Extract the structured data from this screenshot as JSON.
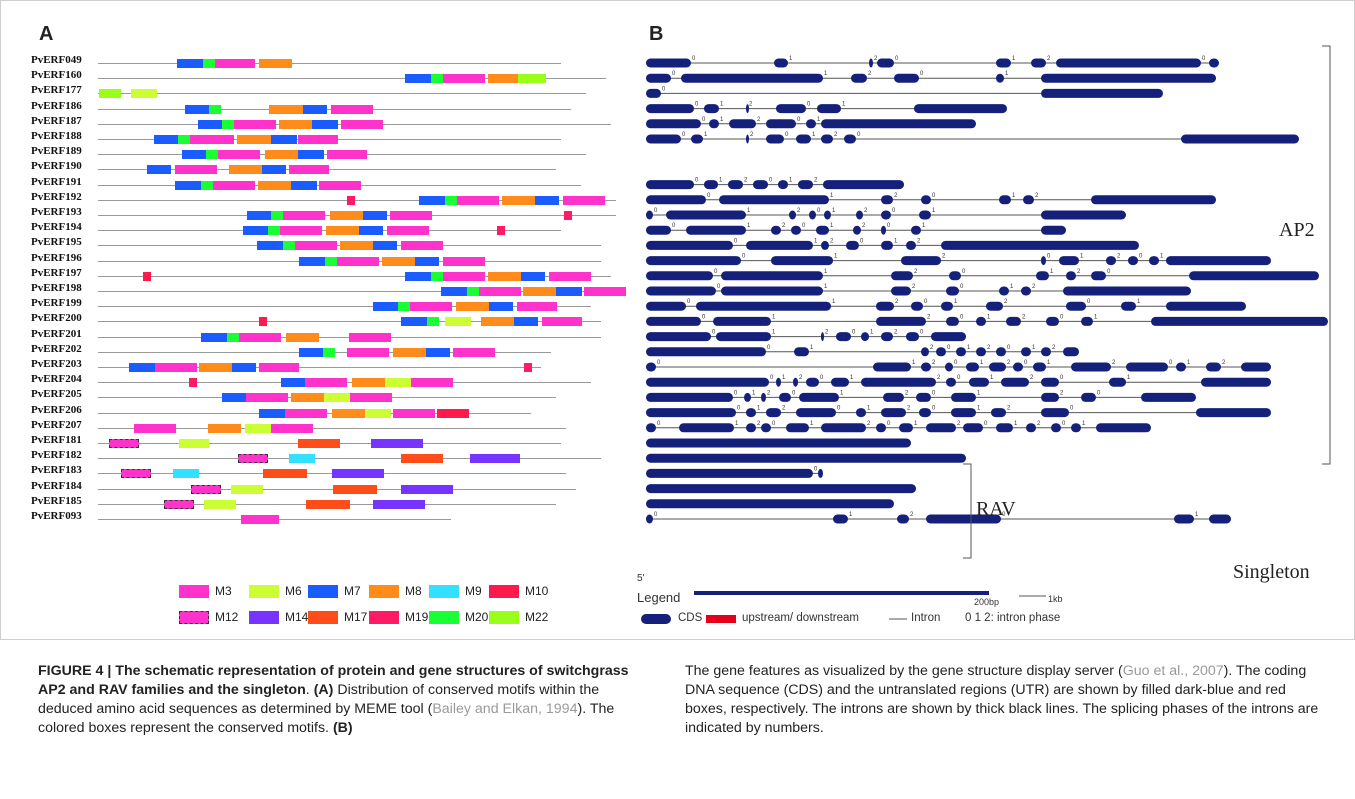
{
  "panels": {
    "a": "A",
    "b": "B"
  },
  "genes": [
    "PvERF049",
    "PvERF160",
    "PvERF177",
    "PvERF186",
    "PvERF187",
    "PvERF188",
    "PvERF189",
    "PvERF190",
    "PvERF191",
    "PvERF192",
    "PvERF193",
    "PvERF194",
    "PvERF195",
    "PvERF196",
    "PvERF197",
    "PvERF198",
    "PvERF199",
    "PvERF200",
    "PvERF201",
    "PvERF202",
    "PvERF203",
    "PvERF204",
    "PvERF205",
    "PvERF206",
    "PvERF207",
    "PvERF181",
    "PvERF182",
    "PvERF183",
    "PvERF184",
    "PvERF185",
    "PvERF093"
  ],
  "motif_colors": {
    "M3": "#ff33cc",
    "M6": "#ccff33",
    "M7": "#1a5cff",
    "M8": "#ff8c1a",
    "M9": "#33e0ff",
    "M10": "#ff1a4d",
    "M12": "#ff33cc",
    "M14": "#7733ff",
    "M17": "#ff4d1a",
    "M19": "#ff1a66",
    "M20": "#1aff33",
    "M22": "#99ff1a"
  },
  "motif_legend": [
    {
      "id": "M3",
      "label": "M3"
    },
    {
      "id": "M6",
      "label": "M6"
    },
    {
      "id": "M7",
      "label": "M7"
    },
    {
      "id": "M8",
      "label": "M8"
    },
    {
      "id": "M9",
      "label": "M9"
    },
    {
      "id": "M10",
      "label": "M10"
    },
    {
      "id": "M12",
      "label": "M12"
    },
    {
      "id": "M14",
      "label": "M14"
    },
    {
      "id": "M17",
      "label": "M17"
    },
    {
      "id": "M19",
      "label": "M19"
    },
    {
      "id": "M20",
      "label": "M20"
    },
    {
      "id": "M22",
      "label": "M22"
    }
  ],
  "families": {
    "ap2": "AP2",
    "rav": "RAV",
    "singleton": "Singleton"
  },
  "structure_legend": {
    "legend_label": "Legend",
    "start_mark": "5'",
    "scale_200": "200bp",
    "scale_1k": "1kb",
    "cds": "CDS",
    "utr": "upstream/ downstream",
    "intron": "Intron",
    "phase": "0 1 2: intron phase"
  },
  "colors": {
    "cds": "#14207a",
    "utr": "#e3001b",
    "intron": "#555555"
  },
  "caption": {
    "title": "FIGURE 4 | The schematic representation of protein and gene structures of switchgrass AP2 and RAV families and the singleton",
    "title_end": ".",
    "a_label": "(A)",
    "a_text": " Distribution of conserved motifs within the deduced amino acid sequences as determined by MEME tool (",
    "a_cite": "Bailey and Elkan, 1994",
    "a_text2": "). The colored boxes represent the conserved motifs. ",
    "b_label": "(B)",
    "b_text": " The gene features as visualized by the gene structure display server (",
    "b_cite": "Guo et al., 2007",
    "b_text2": "). The coding DNA sequence (CDS) and the untranslated regions (UTR) are shown by filled dark-blue and red boxes, respectively. The introns are shown by thick black lines. The splicing phases of the introns are indicated by numbers."
  }
}
